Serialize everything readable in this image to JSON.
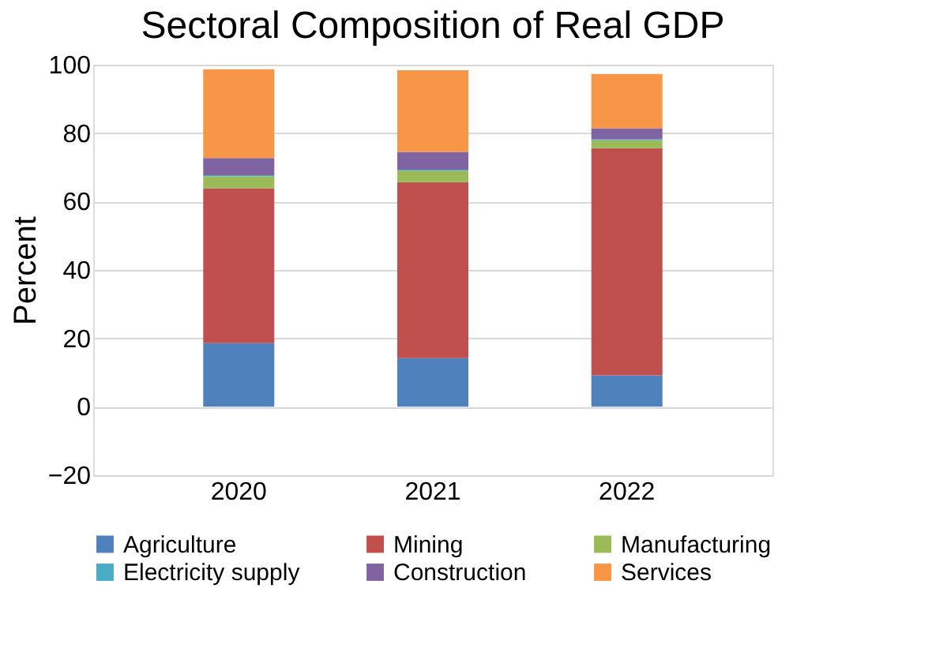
{
  "chart_data": {
    "type": "bar",
    "title": "Sectoral Composition of Real GDP",
    "ylabel": "Percent",
    "categories": [
      "2020",
      "2021",
      "2022"
    ],
    "stacked": true,
    "series": [
      {
        "name": "Agriculture",
        "color": "#4f81bd",
        "values": [
          18.6,
          14.2,
          9.2
        ]
      },
      {
        "name": "Mining",
        "color": "#c0504d",
        "values": [
          45.3,
          51.5,
          66.4
        ]
      },
      {
        "name": "Manufacturing",
        "color": "#9bbb59",
        "values": [
          3.5,
          3.3,
          2.3
        ]
      },
      {
        "name": "Electricity supply",
        "color": "#4bacc6",
        "values": [
          0.3,
          0.3,
          0.3
        ]
      },
      {
        "name": "Construction",
        "color": "#8064a2",
        "values": [
          5.0,
          5.2,
          3.2
        ]
      },
      {
        "name": "Services",
        "color": "#f79646",
        "values": [
          26.0,
          23.9,
          15.9
        ]
      }
    ],
    "ylim": [
      -20,
      100
    ],
    "yticks": [
      -20,
      0,
      20,
      40,
      60,
      80,
      100
    ],
    "grid": "y",
    "legend": "bottom"
  }
}
